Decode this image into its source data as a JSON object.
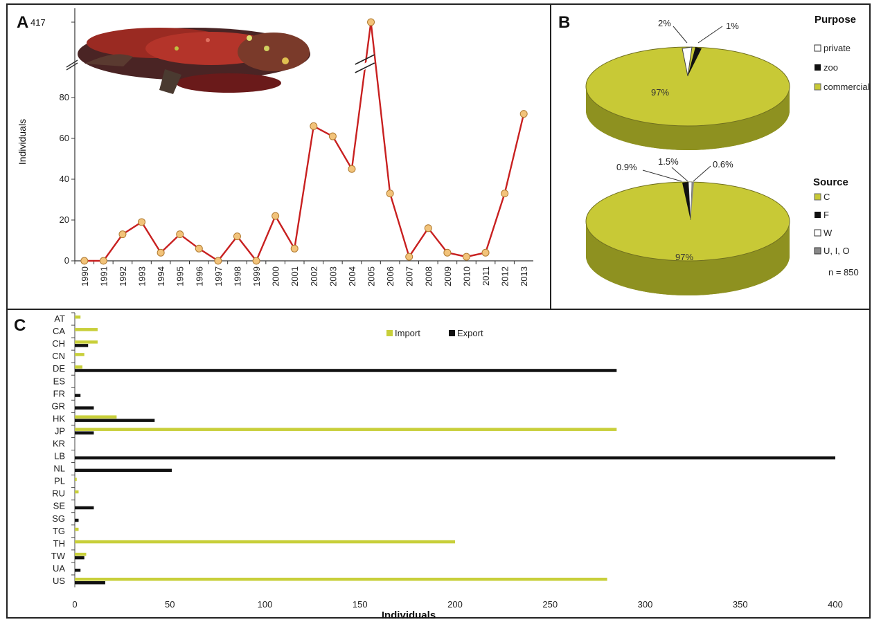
{
  "colors": {
    "line": "#c82020",
    "marker_fill": "#f2c37a",
    "marker_stroke": "#b07a30",
    "pie_commercial": "#c8c936",
    "pie_side": "#8e9120",
    "import": "#c8cf3a",
    "export": "#111111",
    "frame": "#222222"
  },
  "panel_a": {
    "letter": "A",
    "ylabel": "Individuals",
    "break_tick_label": "417",
    "y_ticks": [
      "0",
      "20",
      "40",
      "60",
      "80"
    ],
    "illustration": "lizard-photo"
  },
  "panel_b": {
    "letter": "B",
    "purpose": {
      "legend_title": "Purpose",
      "main_label": "97%",
      "small_labels": [
        "2%",
        "1%"
      ],
      "legend": [
        "private",
        "zoo",
        "commercial"
      ]
    },
    "source": {
      "legend_title": "Source",
      "main_label": "97%",
      "small_labels": [
        "0.9%",
        "1.5%",
        "0.6%"
      ],
      "legend": [
        "C",
        "F",
        "W",
        "U, I, O"
      ]
    },
    "n_label": "n = 850"
  },
  "panel_c": {
    "letter": "C",
    "xlabel": "Individuals",
    "x_ticks": [
      "0",
      "50",
      "100",
      "150",
      "200",
      "250",
      "300",
      "350",
      "400"
    ],
    "legend": [
      "Import",
      "Export"
    ]
  },
  "chart_data": [
    {
      "type": "line",
      "panel": "A",
      "x": [
        1990,
        1991,
        1992,
        1993,
        1994,
        1995,
        1996,
        1997,
        1998,
        1999,
        2000,
        2001,
        2002,
        2003,
        2004,
        2005,
        2006,
        2007,
        2008,
        2009,
        2010,
        2011,
        2012,
        2013
      ],
      "values": [
        0,
        0,
        13,
        19,
        4,
        13,
        6,
        0,
        12,
        0,
        22,
        6,
        66,
        61,
        45,
        417,
        33,
        2,
        16,
        4,
        2,
        4,
        33,
        72
      ],
      "ylabel": "Individuals",
      "ylim": [
        0,
        100
      ],
      "y_axis_break": true,
      "grid": false
    },
    {
      "type": "pie",
      "panel": "B",
      "legend_title": "Purpose",
      "labels": [
        "private",
        "zoo",
        "commercial"
      ],
      "values": [
        2,
        1,
        97
      ],
      "colors": [
        "#ffffff",
        "#111111",
        "#c8c936"
      ]
    },
    {
      "type": "pie",
      "panel": "B",
      "legend_title": "Source",
      "labels": [
        "C",
        "F",
        "W",
        "U, I, O"
      ],
      "values": [
        97,
        1.5,
        0.9,
        0.6
      ],
      "colors": [
        "#c8c936",
        "#111111",
        "#ffffff",
        "#888888"
      ]
    },
    {
      "type": "bar",
      "panel": "C",
      "orientation": "horizontal",
      "categories": [
        "AT",
        "CA",
        "CH",
        "CN",
        "DE",
        "ES",
        "FR",
        "GR",
        "HK",
        "JP",
        "KR",
        "LB",
        "NL",
        "PL",
        "RU",
        "SE",
        "SG",
        "TG",
        "TH",
        "TW",
        "UA",
        "US"
      ],
      "series": [
        {
          "name": "Import",
          "values": [
            3,
            12,
            12,
            5,
            4,
            0,
            0,
            0,
            22,
            285,
            0,
            0,
            0,
            1,
            2,
            0,
            0,
            2,
            200,
            6,
            0,
            280
          ]
        },
        {
          "name": "Export",
          "values": [
            0,
            0,
            7,
            0,
            285,
            0,
            3,
            10,
            42,
            10,
            0,
            400,
            51,
            0,
            0,
            10,
            2,
            0,
            0,
            5,
            3,
            16
          ]
        }
      ],
      "xlabel": "Individuals",
      "xlim": [
        0,
        400
      ],
      "legend_position": "top"
    }
  ]
}
